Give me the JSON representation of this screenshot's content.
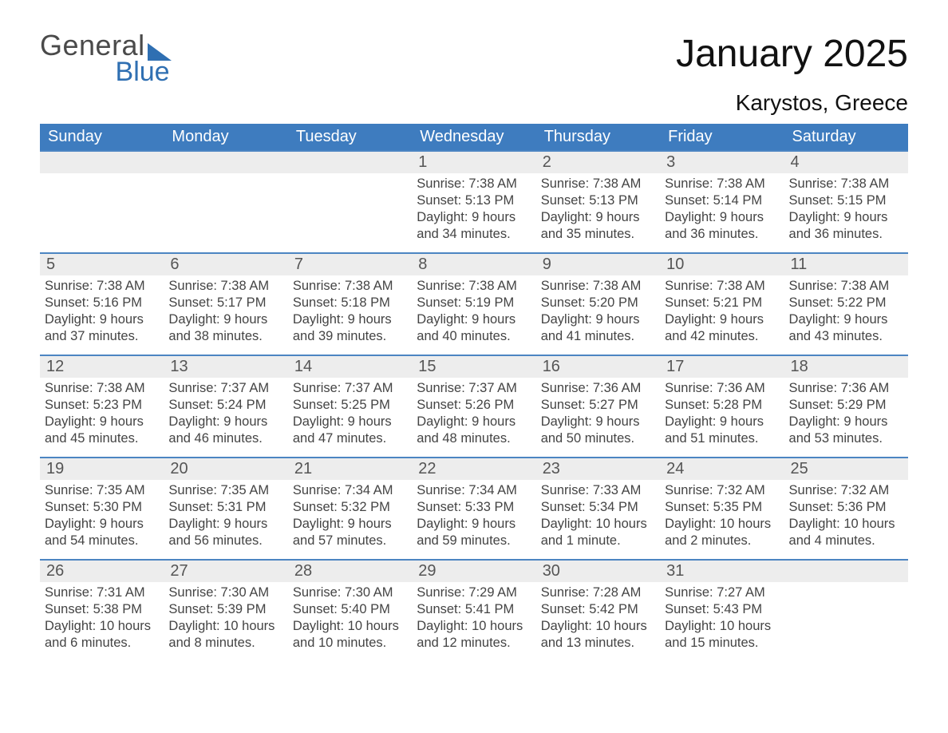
{
  "brand": {
    "line1": "General",
    "line2": "Blue"
  },
  "title": "January 2025",
  "subtitle": "Karystos, Greece",
  "colors": {
    "brand_blue": "#2F6FB2",
    "header_blue": "#3E7CBF",
    "row_separator": "#4C85C2",
    "daynum_bg": "#EDEDED",
    "background": "#ffffff",
    "text_dark": "#222222",
    "text_gray": "#444444"
  },
  "typography": {
    "title_fontsize": 48,
    "subtitle_fontsize": 28,
    "header_fontsize": 20,
    "daynum_fontsize": 20,
    "body_fontsize": 16.5,
    "font_family": "Arial"
  },
  "weekday_headers": [
    "Sunday",
    "Monday",
    "Tuesday",
    "Wednesday",
    "Thursday",
    "Friday",
    "Saturday"
  ],
  "weeks": [
    [
      null,
      null,
      null,
      {
        "n": 1,
        "sr": "7:38 AM",
        "ss": "5:13 PM",
        "dl": "9 hours and 34 minutes."
      },
      {
        "n": 2,
        "sr": "7:38 AM",
        "ss": "5:13 PM",
        "dl": "9 hours and 35 minutes."
      },
      {
        "n": 3,
        "sr": "7:38 AM",
        "ss": "5:14 PM",
        "dl": "9 hours and 36 minutes."
      },
      {
        "n": 4,
        "sr": "7:38 AM",
        "ss": "5:15 PM",
        "dl": "9 hours and 36 minutes."
      }
    ],
    [
      {
        "n": 5,
        "sr": "7:38 AM",
        "ss": "5:16 PM",
        "dl": "9 hours and 37 minutes."
      },
      {
        "n": 6,
        "sr": "7:38 AM",
        "ss": "5:17 PM",
        "dl": "9 hours and 38 minutes."
      },
      {
        "n": 7,
        "sr": "7:38 AM",
        "ss": "5:18 PM",
        "dl": "9 hours and 39 minutes."
      },
      {
        "n": 8,
        "sr": "7:38 AM",
        "ss": "5:19 PM",
        "dl": "9 hours and 40 minutes."
      },
      {
        "n": 9,
        "sr": "7:38 AM",
        "ss": "5:20 PM",
        "dl": "9 hours and 41 minutes."
      },
      {
        "n": 10,
        "sr": "7:38 AM",
        "ss": "5:21 PM",
        "dl": "9 hours and 42 minutes."
      },
      {
        "n": 11,
        "sr": "7:38 AM",
        "ss": "5:22 PM",
        "dl": "9 hours and 43 minutes."
      }
    ],
    [
      {
        "n": 12,
        "sr": "7:38 AM",
        "ss": "5:23 PM",
        "dl": "9 hours and 45 minutes."
      },
      {
        "n": 13,
        "sr": "7:37 AM",
        "ss": "5:24 PM",
        "dl": "9 hours and 46 minutes."
      },
      {
        "n": 14,
        "sr": "7:37 AM",
        "ss": "5:25 PM",
        "dl": "9 hours and 47 minutes."
      },
      {
        "n": 15,
        "sr": "7:37 AM",
        "ss": "5:26 PM",
        "dl": "9 hours and 48 minutes."
      },
      {
        "n": 16,
        "sr": "7:36 AM",
        "ss": "5:27 PM",
        "dl": "9 hours and 50 minutes."
      },
      {
        "n": 17,
        "sr": "7:36 AM",
        "ss": "5:28 PM",
        "dl": "9 hours and 51 minutes."
      },
      {
        "n": 18,
        "sr": "7:36 AM",
        "ss": "5:29 PM",
        "dl": "9 hours and 53 minutes."
      }
    ],
    [
      {
        "n": 19,
        "sr": "7:35 AM",
        "ss": "5:30 PM",
        "dl": "9 hours and 54 minutes."
      },
      {
        "n": 20,
        "sr": "7:35 AM",
        "ss": "5:31 PM",
        "dl": "9 hours and 56 minutes."
      },
      {
        "n": 21,
        "sr": "7:34 AM",
        "ss": "5:32 PM",
        "dl": "9 hours and 57 minutes."
      },
      {
        "n": 22,
        "sr": "7:34 AM",
        "ss": "5:33 PM",
        "dl": "9 hours and 59 minutes."
      },
      {
        "n": 23,
        "sr": "7:33 AM",
        "ss": "5:34 PM",
        "dl": "10 hours and 1 minute."
      },
      {
        "n": 24,
        "sr": "7:32 AM",
        "ss": "5:35 PM",
        "dl": "10 hours and 2 minutes."
      },
      {
        "n": 25,
        "sr": "7:32 AM",
        "ss": "5:36 PM",
        "dl": "10 hours and 4 minutes."
      }
    ],
    [
      {
        "n": 26,
        "sr": "7:31 AM",
        "ss": "5:38 PM",
        "dl": "10 hours and 6 minutes."
      },
      {
        "n": 27,
        "sr": "7:30 AM",
        "ss": "5:39 PM",
        "dl": "10 hours and 8 minutes."
      },
      {
        "n": 28,
        "sr": "7:30 AM",
        "ss": "5:40 PM",
        "dl": "10 hours and 10 minutes."
      },
      {
        "n": 29,
        "sr": "7:29 AM",
        "ss": "5:41 PM",
        "dl": "10 hours and 12 minutes."
      },
      {
        "n": 30,
        "sr": "7:28 AM",
        "ss": "5:42 PM",
        "dl": "10 hours and 13 minutes."
      },
      {
        "n": 31,
        "sr": "7:27 AM",
        "ss": "5:43 PM",
        "dl": "10 hours and 15 minutes."
      },
      null
    ]
  ],
  "labels": {
    "sunrise": "Sunrise:",
    "sunset": "Sunset:",
    "daylight": "Daylight:"
  }
}
